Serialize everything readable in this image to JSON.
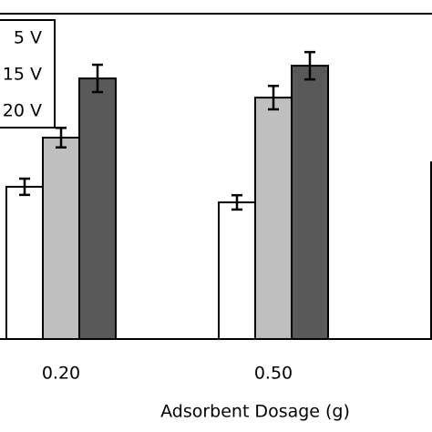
{
  "chart_data": {
    "type": "bar",
    "x_label": "Adsorbent Dosage (g)",
    "categories": [
      "0.20",
      "0.50",
      null
    ],
    "series": [
      {
        "name": "5 V",
        "color": "#ffffff",
        "values": [
          46.8,
          42.0,
          54.3
        ],
        "errors": [
          2.5,
          2.2,
          null
        ]
      },
      {
        "name": "15 V",
        "color": "#bfbfbf",
        "values": [
          61.9,
          74.2,
          null
        ],
        "errors": [
          3.0,
          3.6,
          null
        ]
      },
      {
        "name": "20 V",
        "color": "#595959",
        "values": [
          80.1,
          84.0,
          null
        ],
        "errors": [
          4.2,
          4.2,
          null
        ]
      }
    ],
    "ylim": [
      0,
      100
    ]
  }
}
